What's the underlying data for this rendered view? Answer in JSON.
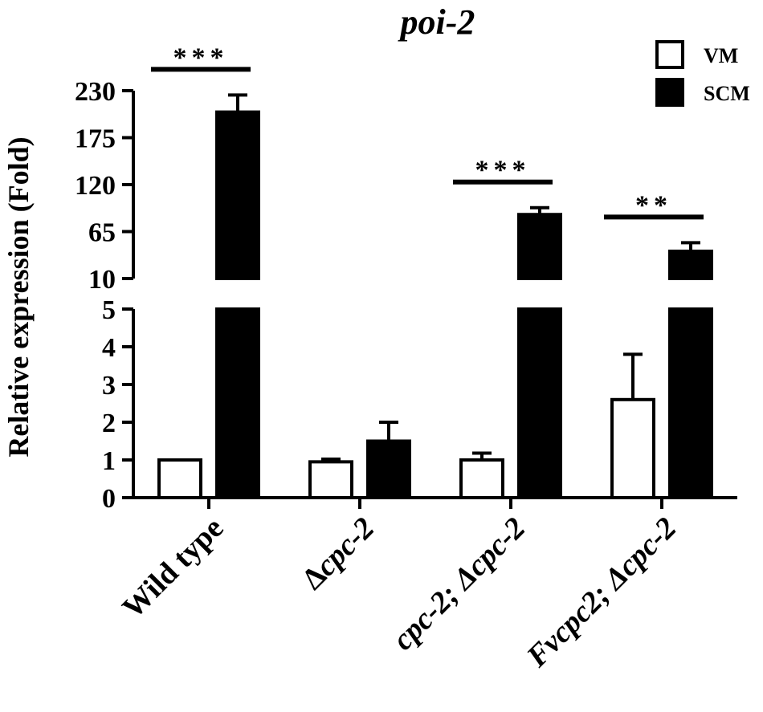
{
  "chart_data": {
    "type": "bar",
    "title": "poi-2",
    "ylabel": "Relative expression (Fold)",
    "xlabel": "",
    "categories": [
      {
        "text": "Wild type",
        "prefix": "",
        "italic": ""
      },
      {
        "text": "",
        "prefix": "Δ",
        "italic": "cpc-2"
      },
      {
        "text": "",
        "prefix": "",
        "italic": "cpc-2; Δcpc-2"
      },
      {
        "text": "",
        "prefix": "",
        "italic": "Fvcpc2; Δcpc-2"
      }
    ],
    "series": [
      {
        "name": "VM",
        "fill": "#ffffff",
        "values": [
          1.0,
          0.95,
          1.0,
          2.6
        ],
        "errors": [
          0.0,
          0.07,
          0.18,
          1.2
        ]
      },
      {
        "name": "SCM",
        "fill": "#000000",
        "values": [
          205,
          1.5,
          85,
          42
        ],
        "errors": [
          20,
          0.5,
          8,
          10
        ]
      }
    ],
    "y_axis": {
      "broken": true,
      "lower_segment": {
        "range": [
          0,
          5
        ],
        "ticks": [
          "0",
          "1",
          "2",
          "3",
          "4",
          "5"
        ]
      },
      "upper_segment": {
        "range": [
          10,
          230
        ],
        "ticks": [
          "10",
          "65",
          "120",
          "175",
          "230"
        ]
      }
    },
    "significance": [
      {
        "category_index": 0,
        "label": "***"
      },
      {
        "category_index": 2,
        "label": "***"
      },
      {
        "category_index": 3,
        "label": "**"
      }
    ],
    "legend_position": "top-right",
    "grid": false
  }
}
